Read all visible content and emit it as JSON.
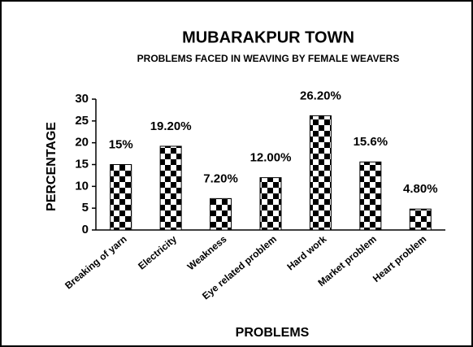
{
  "chart_data": {
    "type": "bar",
    "title": "MUBARAKPUR TOWN",
    "subtitle": "PROBLEMS FACED IN WEAVING BY FEMALE WEAVERS",
    "x_label": "PROBLEMS",
    "y_label": "PERCENTAGE",
    "categories": [
      "Breaking of yarn",
      "Electricity",
      "Weakness",
      "Eye related problem",
      "Hard work",
      "Market problem",
      "Heart problem"
    ],
    "values": [
      15,
      19.2,
      7.2,
      12,
      26.2,
      15.6,
      4.8
    ],
    "value_labels": [
      "15%",
      "19.20%",
      "7.20%",
      "12.00%",
      "26.20%",
      "15.6%",
      "4.80%"
    ],
    "color": "#000000",
    "ylim": [
      0,
      30
    ],
    "yticks": [
      0,
      5,
      10,
      15,
      20,
      25,
      30
    ],
    "grid": false
  }
}
